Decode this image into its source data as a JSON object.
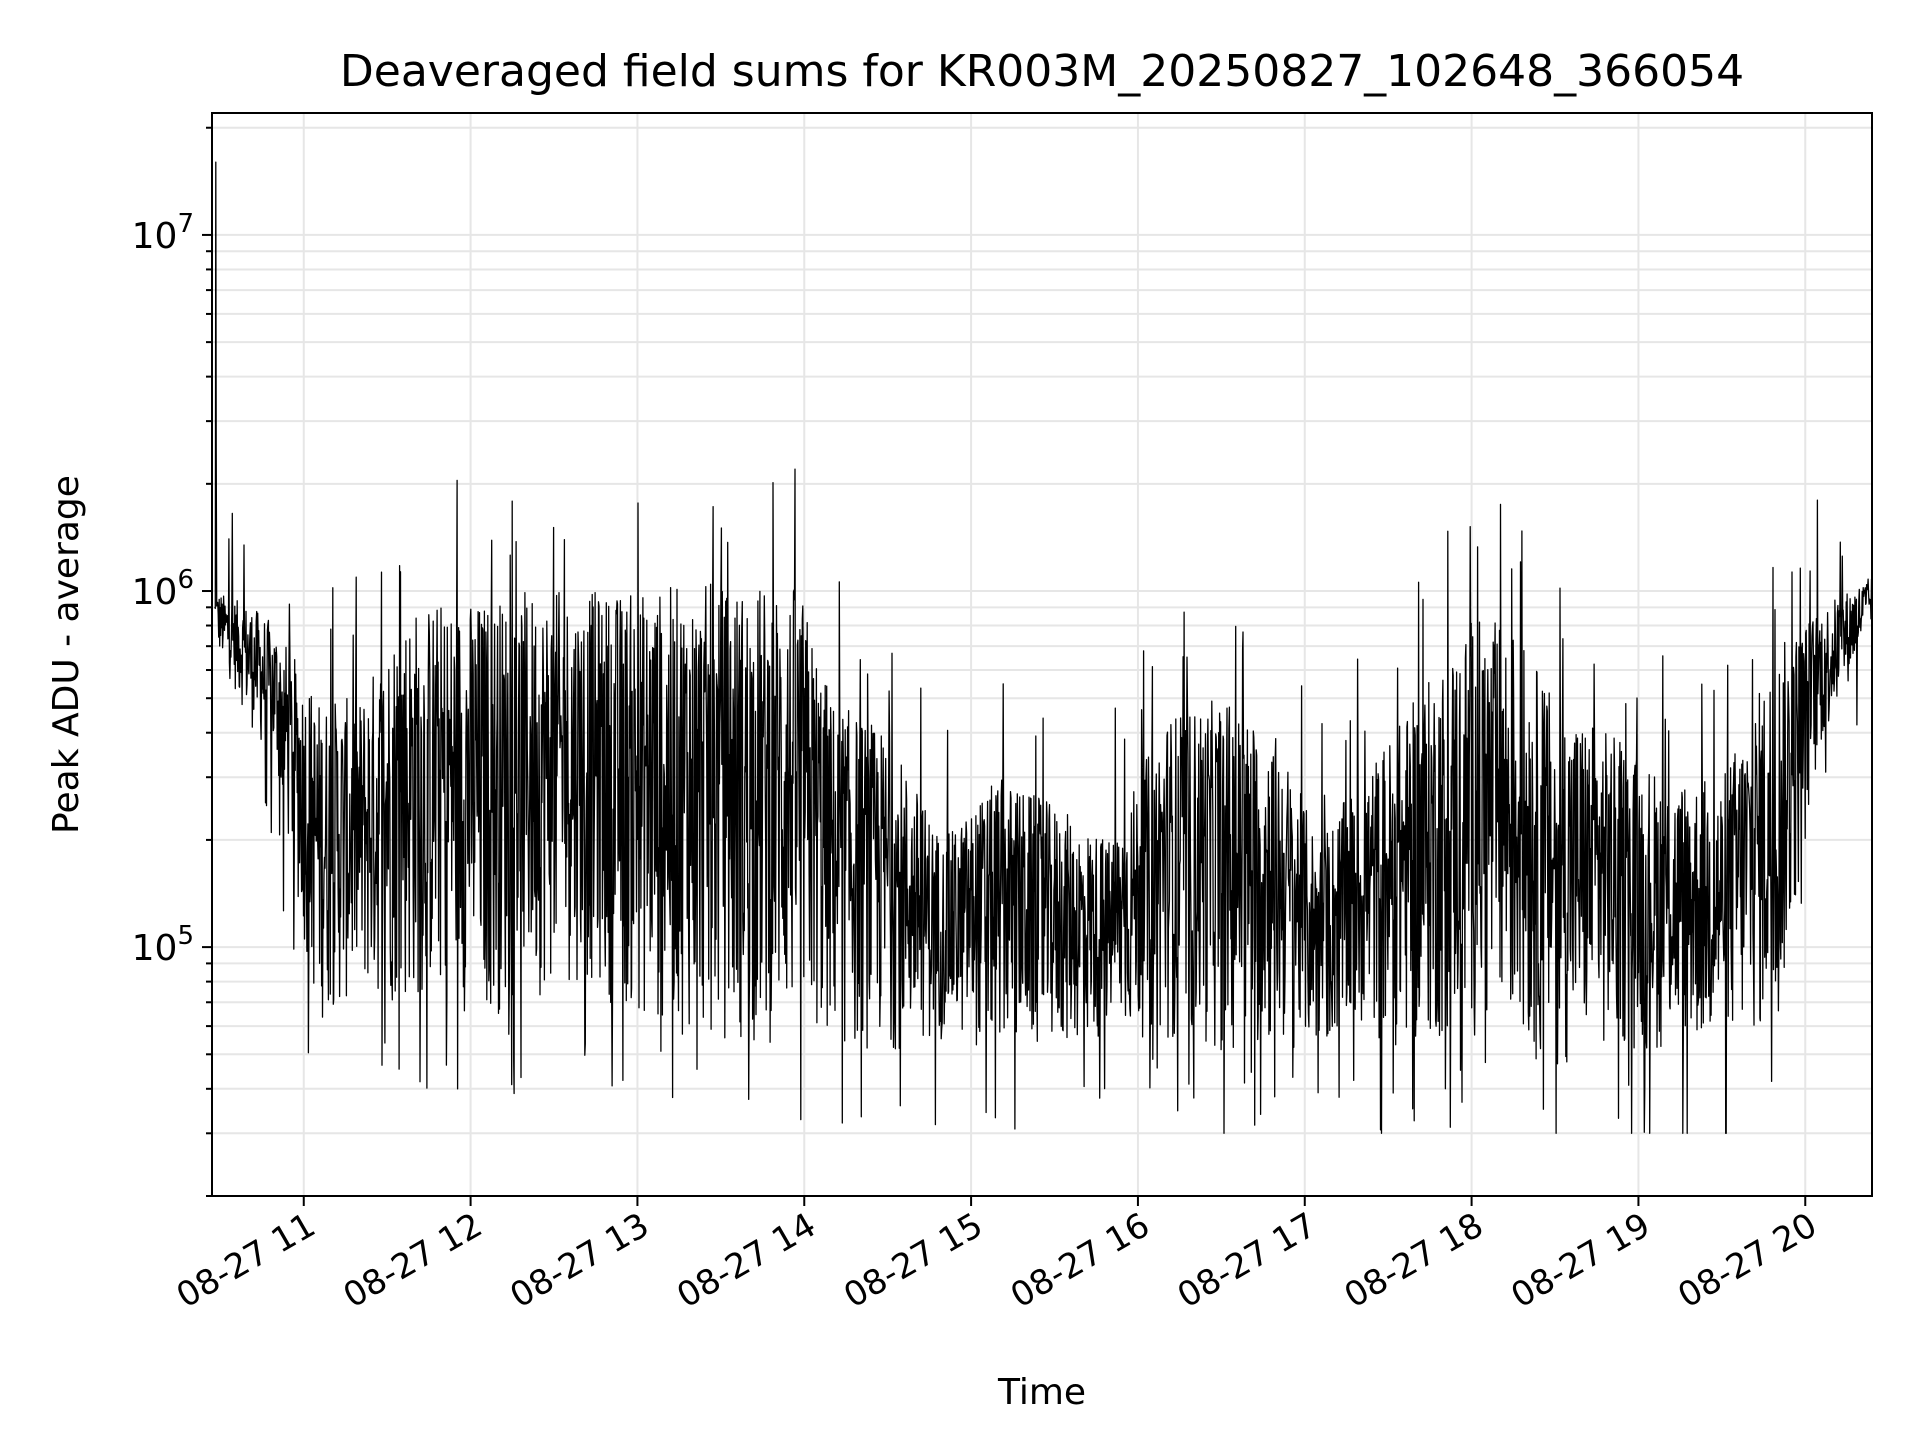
{
  "chart_data": {
    "type": "line",
    "title": "Deaveraged field sums for KR003M_20250827_102648_366054",
    "xlabel": "Time",
    "ylabel": "Peak ADU - average",
    "yscale": "log",
    "ylim": [
      20000,
      22000000
    ],
    "xlim": [
      "2025-08-27 10:27",
      "2025-08-27 20:24"
    ],
    "grid": true,
    "line_color": "#000000",
    "x_ticks": [
      {
        "t": "2025-08-27 11:00",
        "label": "08-27 11"
      },
      {
        "t": "2025-08-27 12:00",
        "label": "08-27 12"
      },
      {
        "t": "2025-08-27 13:00",
        "label": "08-27 13"
      },
      {
        "t": "2025-08-27 14:00",
        "label": "08-27 14"
      },
      {
        "t": "2025-08-27 15:00",
        "label": "08-27 15"
      },
      {
        "t": "2025-08-27 16:00",
        "label": "08-27 16"
      },
      {
        "t": "2025-08-27 17:00",
        "label": "08-27 17"
      },
      {
        "t": "2025-08-27 18:00",
        "label": "08-27 18"
      },
      {
        "t": "2025-08-27 19:00",
        "label": "08-27 19"
      },
      {
        "t": "2025-08-27 20:00",
        "label": "08-27 20"
      }
    ],
    "y_ticks": [
      {
        "value": 100000,
        "base": "10",
        "exp": "5"
      },
      {
        "value": 1000000,
        "base": "10",
        "exp": "6"
      },
      {
        "value": 10000000,
        "base": "10",
        "exp": "7"
      }
    ],
    "envelope": {
      "x": [
        "2025-08-27 10:28",
        "2025-08-27 10:42",
        "2025-08-27 10:50",
        "2025-08-27 11:05",
        "2025-08-27 11:20",
        "2025-08-27 11:35",
        "2025-08-27 11:50",
        "2025-08-27 12:05",
        "2025-08-27 12:20",
        "2025-08-27 12:40",
        "2025-08-27 13:00",
        "2025-08-27 13:20",
        "2025-08-27 13:40",
        "2025-08-27 13:58",
        "2025-08-27 14:10",
        "2025-08-27 14:30",
        "2025-08-27 14:50",
        "2025-08-27 15:10",
        "2025-08-27 15:30",
        "2025-08-27 15:50",
        "2025-08-27 16:10",
        "2025-08-27 16:30",
        "2025-08-27 16:50",
        "2025-08-27 17:05",
        "2025-08-27 17:20",
        "2025-08-27 17:40",
        "2025-08-27 18:00",
        "2025-08-27 18:15",
        "2025-08-27 18:30",
        "2025-08-27 18:50",
        "2025-08-27 19:10",
        "2025-08-27 19:30",
        "2025-08-27 19:50",
        "2025-08-27 20:05",
        "2025-08-27 20:24"
      ],
      "high": [
        1000000,
        900000,
        800000,
        500000,
        500000,
        900000,
        950000,
        950000,
        1000000,
        1000000,
        1000000,
        1050000,
        1050000,
        1050000,
        500000,
        400000,
        200000,
        300000,
        250000,
        200000,
        450000,
        500000,
        400000,
        200000,
        300000,
        500000,
        850000,
        800000,
        500000,
        400000,
        300000,
        300000,
        700000,
        900000,
        1100000
      ],
      "low": [
        700000,
        400000,
        300000,
        60000,
        70000,
        65000,
        70000,
        60000,
        70000,
        80000,
        60000,
        55000,
        50000,
        55000,
        50000,
        50000,
        55000,
        50000,
        50000,
        55000,
        55000,
        50000,
        50000,
        50000,
        55000,
        50000,
        55000,
        50000,
        45000,
        50000,
        50000,
        50000,
        55000,
        350000,
        800000
      ]
    },
    "spike_range": [
      30000,
      16000000
    ]
  }
}
